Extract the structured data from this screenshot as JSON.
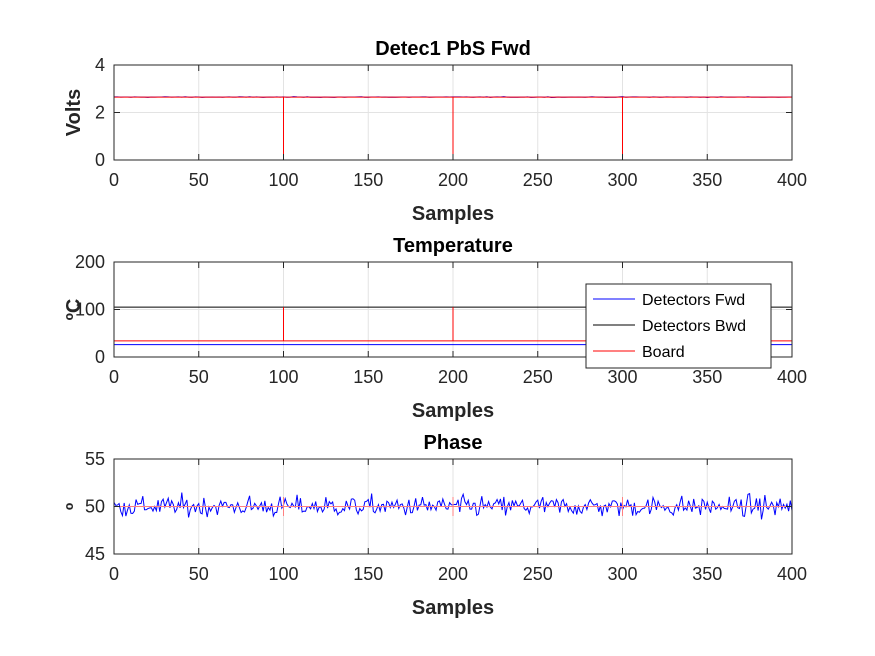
{
  "chart_data": [
    {
      "type": "line",
      "title": "Detec1 PbS Fwd",
      "xlabel": "Samples",
      "ylabel": "Volts",
      "xlim": [
        0,
        400
      ],
      "ylim": [
        0,
        4
      ],
      "xticks": [
        "0",
        "50",
        "100",
        "150",
        "200",
        "250",
        "300",
        "350",
        "400"
      ],
      "yticks": [
        "0",
        "2",
        "4"
      ],
      "grid": true,
      "series": [
        {
          "color": "#0000ff",
          "kind": "constant",
          "value": 2.65,
          "noise": 0.01
        },
        {
          "color": "#ff0000",
          "kind": "spikes",
          "value": 2.65,
          "spike_x": [
            100,
            200,
            300,
            400
          ],
          "spike_min": 0.15
        }
      ]
    },
    {
      "type": "line",
      "title": "Temperature",
      "xlabel": "Samples",
      "ylabel": "ºC",
      "xlim": [
        0,
        400
      ],
      "ylim": [
        0,
        200
      ],
      "xticks": [
        "0",
        "50",
        "100",
        "150",
        "200",
        "250",
        "300",
        "350",
        "400"
      ],
      "yticks": [
        "0",
        "100",
        "200"
      ],
      "grid": true,
      "legend": "top-right",
      "series": [
        {
          "name": "Detectors Fwd",
          "color": "#0000ff",
          "kind": "constant",
          "value": 26
        },
        {
          "name": "Detectors Bwd",
          "color": "#000000",
          "kind": "constant",
          "value": 105
        },
        {
          "name": "Board",
          "color": "#ff0000",
          "kind": "spikes",
          "value": 34,
          "spike_x": [
            100,
            200,
            300,
            400
          ],
          "spike_min": 105
        }
      ]
    },
    {
      "type": "line",
      "title": "Phase",
      "xlabel": "Samples",
      "ylabel": "º",
      "xlim": [
        0,
        400
      ],
      "ylim": [
        45,
        55
      ],
      "xticks": [
        "0",
        "50",
        "100",
        "150",
        "200",
        "250",
        "300",
        "350",
        "400"
      ],
      "yticks": [
        "45",
        "50",
        "55"
      ],
      "grid": true,
      "series": [
        {
          "color": "#0000ff",
          "kind": "noise",
          "value": 50,
          "noise": 0.75
        },
        {
          "color": "#ff8080",
          "kind": "spikes",
          "value": 50,
          "spike_x": [
            100,
            200,
            300,
            400
          ],
          "spike_min": 49,
          "spike_max": 51
        }
      ]
    }
  ]
}
